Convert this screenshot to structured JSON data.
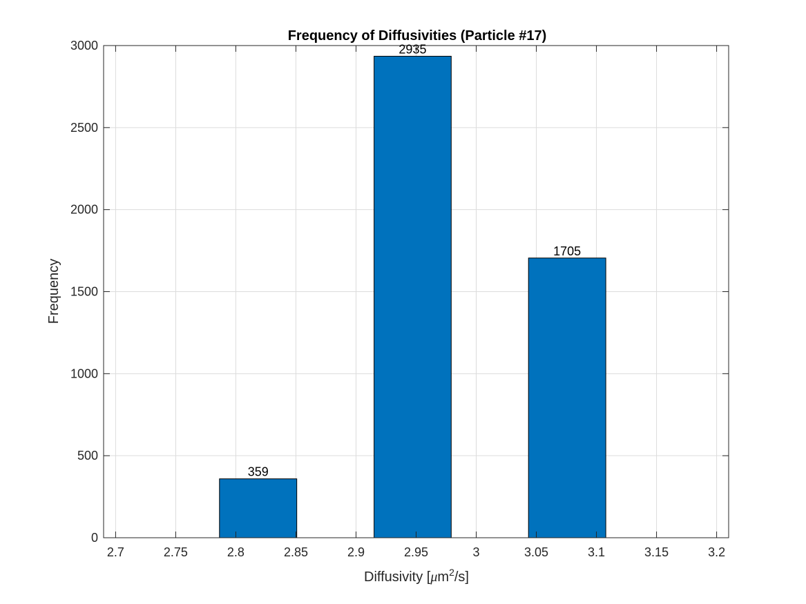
{
  "chart_data": {
    "type": "bar",
    "title": "Frequency of Diffusivities (Particle #17)",
    "xlabel_parts": [
      "Diffusivity [",
      "μ",
      "m",
      "2",
      "/s]"
    ],
    "ylabel": "Frequency",
    "xlim": [
      2.69,
      3.21
    ],
    "ylim": [
      0,
      3000
    ],
    "xticks": [
      2.7,
      2.75,
      2.8,
      2.85,
      2.9,
      2.95,
      3.0,
      3.05,
      3.1,
      3.15,
      3.2
    ],
    "xtick_labels": [
      "2.7",
      "2.75",
      "2.8",
      "2.85",
      "2.9",
      "2.95",
      "3",
      "3.05",
      "3.1",
      "3.15",
      "3.2"
    ],
    "yticks": [
      0,
      500,
      1000,
      1500,
      2000,
      2500,
      3000
    ],
    "ytick_labels": [
      "0",
      "500",
      "1000",
      "1500",
      "2000",
      "2500",
      "3000"
    ],
    "grid": true,
    "bar_color": "#0072BD",
    "bars": [
      {
        "x_start": 2.7864,
        "x_end": 2.8507,
        "value": 359,
        "label": "359"
      },
      {
        "x_start": 2.915,
        "x_end": 2.9792,
        "value": 2935,
        "label": "2935"
      },
      {
        "x_start": 3.0435,
        "x_end": 3.1078,
        "value": 1705,
        "label": "1705"
      }
    ]
  }
}
